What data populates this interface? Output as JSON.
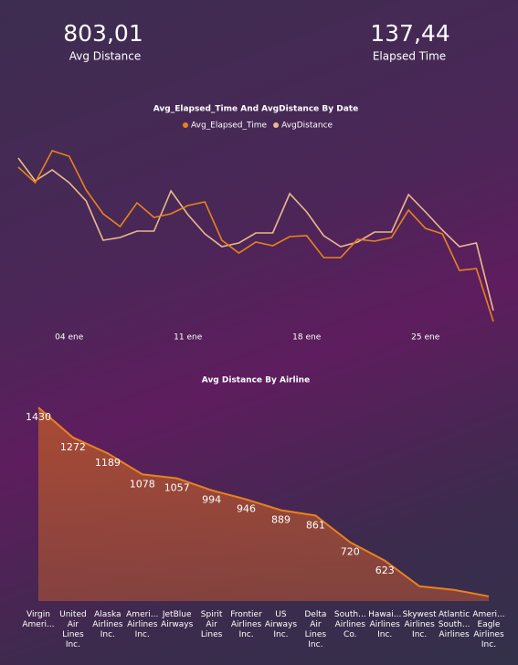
{
  "kpis": [
    {
      "value": "803,01",
      "label": "Avg Distance"
    },
    {
      "value": "137,44",
      "label": "Elapsed Time"
    }
  ],
  "chart_data": [
    {
      "type": "line",
      "title": "Avg_Elapsed_Time And AvgDistance By Date",
      "x": [
        1,
        2,
        3,
        4,
        5,
        6,
        7,
        8,
        9,
        10,
        11,
        12,
        13,
        14,
        15,
        16,
        17,
        18,
        19,
        20,
        21,
        22,
        23,
        24,
        25,
        26,
        27,
        28,
        29
      ],
      "xlim": [
        1,
        29
      ],
      "xticks": [
        {
          "value": 4,
          "label": "04 ene"
        },
        {
          "value": 11,
          "label": "11 ene"
        },
        {
          "value": 18,
          "label": "18 ene"
        },
        {
          "value": 25,
          "label": "25 ene"
        }
      ],
      "ylim": [
        129,
        150
      ],
      "y2lim": [
        700,
        910
      ],
      "series": [
        {
          "name": "Avg_Elapsed_Time",
          "color": "#e8821e",
          "values": [
            146.7,
            145.0,
            148.5,
            147.9,
            144.2,
            141.6,
            140.2,
            142.8,
            141.2,
            141.6,
            142.5,
            142.9,
            138.7,
            137.3,
            138.5,
            138.1,
            139.1,
            139.2,
            136.8,
            136.8,
            138.8,
            138.6,
            139.0,
            142.0,
            140.0,
            139.4,
            135.4,
            135.6,
            129.8
          ]
        },
        {
          "name": "AvgDistance",
          "color": "#e8b98a",
          "axis": "y2",
          "values": [
            887,
            862,
            874,
            860,
            840,
            797,
            800,
            807,
            807,
            851,
            825,
            804,
            790,
            794,
            805,
            805,
            848,
            828,
            802,
            790,
            795,
            806,
            806,
            847,
            828,
            808,
            790,
            794,
            720
          ]
        }
      ]
    },
    {
      "type": "area",
      "title": "Avg Distance By Airline",
      "categories": [
        "Virgin Ameri...",
        "United Air Lines Inc.",
        "Alaska Airlines Inc.",
        "Ameri... Airlines Inc.",
        "JetBlue Airways",
        "Spirit Air Lines",
        "Frontier Airlines Inc.",
        "US Airways Inc.",
        "Delta Air Lines Inc.",
        "South... Airlines Co.",
        "Hawai... Airlines Inc.",
        "Skywest Airlines Inc.",
        "Atlantic South... Airlines",
        "Ameri... Eagle Airlines Inc."
      ],
      "values": [
        1430,
        1272,
        1189,
        1078,
        1057,
        994,
        946,
        889,
        861,
        720,
        623,
        488,
        469,
        435
      ],
      "value_labels": [
        "1430",
        "1272",
        "1189",
        "1078",
        "1057",
        "994",
        "946",
        "889",
        "861",
        "720",
        "623",
        null,
        null,
        null
      ],
      "ylim": [
        410,
        1450
      ],
      "color": "#e8821e"
    }
  ]
}
